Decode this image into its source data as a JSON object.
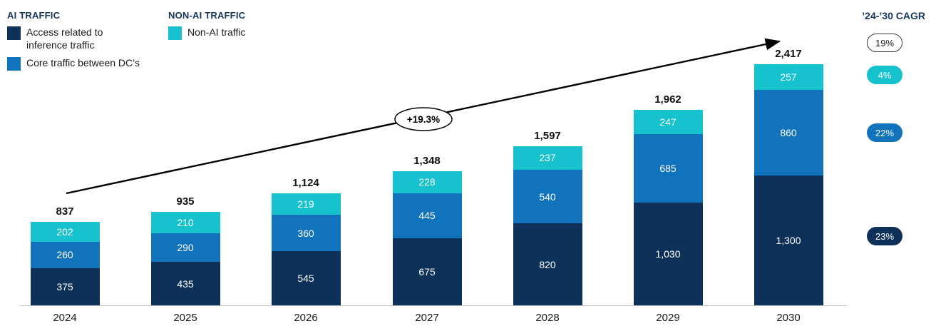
{
  "legend": {
    "ai_title": "AI TRAFFIC",
    "non_ai_title": "NON-AI TRAFFIC",
    "items": [
      {
        "label": "Access related to inference traffic",
        "color": "#0d3158"
      },
      {
        "label": "Core traffic between DC’s",
        "color": "#1273bd"
      },
      {
        "label": "Non-AI traffic",
        "color": "#15c2cd"
      }
    ]
  },
  "cagr": {
    "title": "’24-’30 CAGR",
    "badges": [
      {
        "label": "19%",
        "style": "outline",
        "color": "#ffffff"
      },
      {
        "label": "4%",
        "style": "filled",
        "color": "#15c2cd"
      },
      {
        "label": "22%",
        "style": "filled",
        "color": "#1273bd"
      },
      {
        "label": "23%",
        "style": "filled",
        "color": "#0d3158"
      }
    ]
  },
  "annotation": {
    "growth_label": "+19.3%"
  },
  "chart_data": {
    "type": "bar",
    "stacked": true,
    "title": "",
    "xlabel": "",
    "ylabel": "",
    "grid": false,
    "legend_position": "top-left",
    "ylim": [
      0,
      2500
    ],
    "categories": [
      "2024",
      "2025",
      "2026",
      "2027",
      "2028",
      "2029",
      "2030"
    ],
    "series": [
      {
        "name": "Access related to inference traffic",
        "color": "#0d3158",
        "values": [
          375,
          435,
          545,
          675,
          820,
          1030,
          1300
        ]
      },
      {
        "name": "Core traffic between DC’s",
        "color": "#1273bd",
        "values": [
          260,
          290,
          360,
          445,
          540,
          685,
          860
        ]
      },
      {
        "name": "Non-AI traffic",
        "color": "#15c2cd",
        "values": [
          202,
          210,
          219,
          228,
          237,
          247,
          257
        ]
      }
    ],
    "totals": [
      "837",
      "935",
      "1,124",
      "1,348",
      "1,597",
      "1,962",
      "2,417"
    ],
    "trend_annotation": "+19.3%"
  }
}
